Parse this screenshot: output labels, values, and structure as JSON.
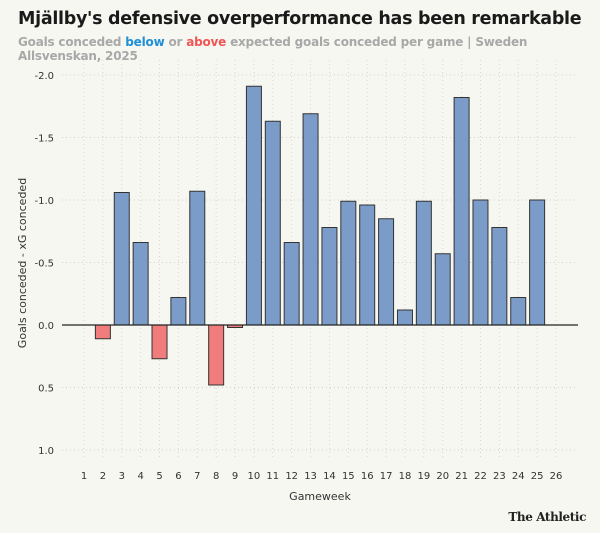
{
  "title": "Mjällby's defensive overperformance has been remarkable",
  "subtitle": {
    "part1": "Goals conceded ",
    "below": "below",
    "part2": " or ",
    "above": "above",
    "part3": " expected goals conceded per game | Sweden Allsvenskan, 2025"
  },
  "logo": "The Athletic",
  "colors": {
    "below": "#7b9cc8",
    "above": "#f17c7c",
    "below_text": "#1f8fd6",
    "above_text": "#ee5555"
  },
  "chart_data": {
    "type": "bar",
    "xlabel": "Gameweek",
    "ylabel": "Goals conceded - xG conceded",
    "ylim": [
      1.0,
      -2.0
    ],
    "y_inverted": true,
    "yticks": [
      -2.0,
      -1.5,
      -1.0,
      -0.5,
      0.0,
      0.5,
      1.0
    ],
    "ytick_labels": [
      "-2.0",
      "-1.5",
      "-1.0",
      "-0.5",
      "0.0",
      "0.5",
      "1.0"
    ],
    "grid": true,
    "categories": [
      "1",
      "2",
      "3",
      "4",
      "5",
      "6",
      "7",
      "8",
      "9",
      "10",
      "11",
      "12",
      "13",
      "14",
      "15",
      "16",
      "17",
      "18",
      "19",
      "20",
      "21",
      "22",
      "23",
      "24",
      "25",
      "26"
    ],
    "values": [
      null,
      0.11,
      -1.06,
      -0.66,
      0.27,
      -0.22,
      -1.07,
      0.48,
      0.02,
      -1.91,
      -1.63,
      -0.66,
      -1.69,
      -0.78,
      -0.99,
      -0.96,
      -0.85,
      -0.12,
      -0.99,
      -0.57,
      -1.82,
      -1.0,
      -0.78,
      -0.22,
      -1.0,
      null
    ]
  }
}
